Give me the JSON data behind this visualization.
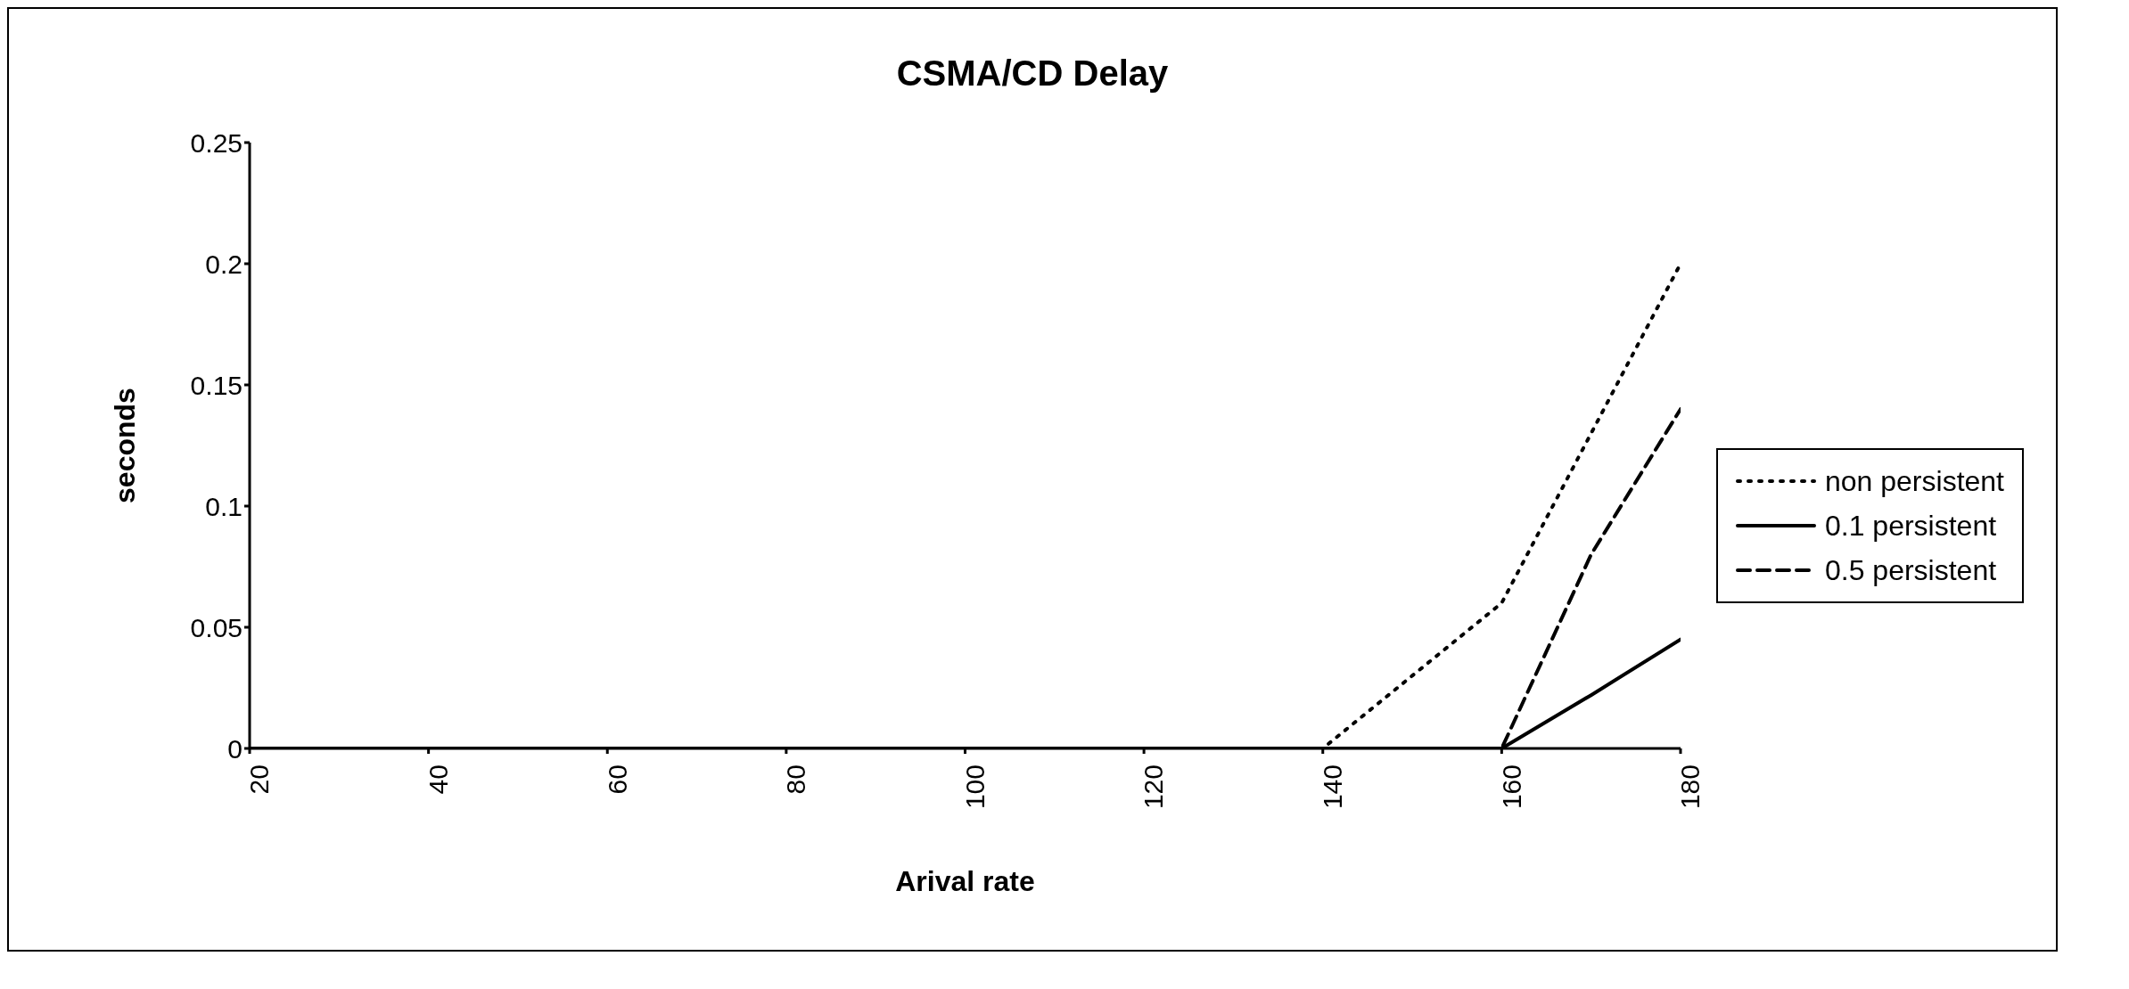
{
  "chart_data": {
    "type": "line",
    "title": "CSMA/CD Delay",
    "xlabel": "Arival rate",
    "ylabel": "seconds",
    "x": [
      20,
      40,
      60,
      80,
      100,
      120,
      140,
      150,
      160,
      170,
      180
    ],
    "series": [
      {
        "name": "non persistent",
        "color": "#000000",
        "line_style": "dotted",
        "values": [
          0,
          0,
          0,
          0,
          0,
          0,
          0,
          0.03,
          0.06,
          0.13,
          0.2
        ]
      },
      {
        "name": "0.1 persistent",
        "color": "#000000",
        "line_style": "solid",
        "values": [
          0,
          0,
          0,
          0,
          0,
          0,
          0,
          0,
          0,
          0.022,
          0.045
        ]
      },
      {
        "name": "0.5 persistent",
        "color": "#000000",
        "line_style": "dashed",
        "values": [
          0,
          0,
          0,
          0,
          0,
          0,
          0,
          0,
          0,
          0.08,
          0.14
        ]
      }
    ],
    "xlim": [
      20,
      180
    ],
    "xticks": [
      20,
      40,
      60,
      80,
      100,
      120,
      140,
      160,
      180
    ],
    "ylim": [
      0,
      0.25
    ],
    "yticks": [
      0,
      0.05,
      0.1,
      0.15,
      0.2,
      0.25
    ],
    "grid": false,
    "legend": "right",
    "marker": "none"
  }
}
